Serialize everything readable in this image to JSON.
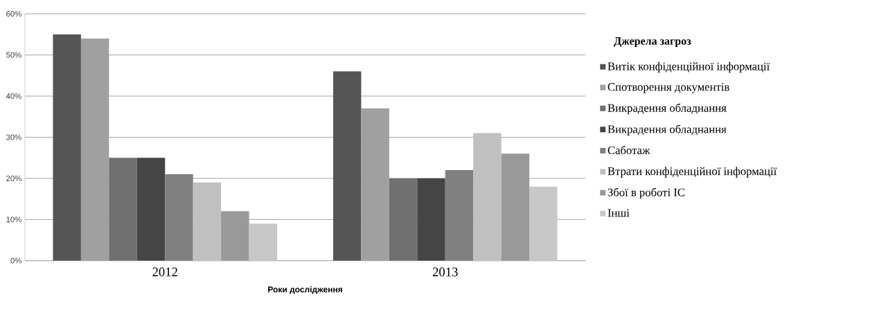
{
  "chart_data": {
    "type": "bar",
    "xlabel": "Роки дослідження",
    "legend_title": "Джерела загроз",
    "categories": [
      "2012",
      "2013"
    ],
    "series": [
      {
        "name": "Витік конфіденційної інформації",
        "color": "#555555",
        "values": [
          55,
          46
        ]
      },
      {
        "name": "Спотворення документів",
        "color": "#a0a0a0",
        "values": [
          54,
          37
        ]
      },
      {
        "name": "Викрадення обладнання",
        "color": "#707070",
        "values": [
          25,
          20
        ]
      },
      {
        "name": "Викрадення обладнання",
        "color": "#454545",
        "values": [
          25,
          20
        ]
      },
      {
        "name": "Саботаж",
        "color": "#808080",
        "values": [
          21,
          22
        ]
      },
      {
        "name": "Втрати конфіденційної інформації",
        "color": "#c0c0c0",
        "values": [
          19,
          31
        ]
      },
      {
        "name": "Збої в роботі ІС",
        "color": "#999999",
        "values": [
          12,
          26
        ]
      },
      {
        "name": "Інші",
        "color": "#c8c8c8",
        "values": [
          9,
          18
        ]
      }
    ],
    "ylim": [
      0,
      60
    ],
    "yticks": [
      {
        "value": 0,
        "label": "0%"
      },
      {
        "value": 10,
        "label": "10%"
      },
      {
        "value": 20,
        "label": "20%"
      },
      {
        "value": 30,
        "label": "30%"
      },
      {
        "value": 40,
        "label": "40%"
      },
      {
        "value": 50,
        "label": "50%"
      },
      {
        "value": 60,
        "label": "60%"
      }
    ],
    "grid": "y",
    "legend": "right"
  }
}
